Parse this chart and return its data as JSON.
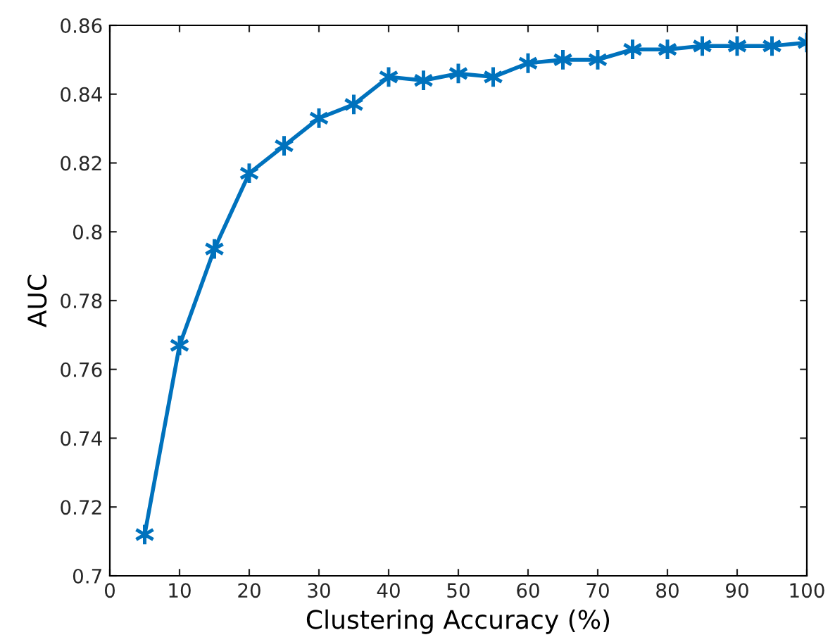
{
  "chart_data": {
    "type": "line",
    "xlabel": "Clustering Accuracy (%)",
    "ylabel": "AUC",
    "x": [
      5,
      10,
      15,
      20,
      25,
      30,
      35,
      40,
      45,
      50,
      55,
      60,
      65,
      70,
      75,
      80,
      85,
      90,
      95,
      100
    ],
    "series": [
      {
        "color": "#0072bd",
        "values": [
          0.712,
          0.767,
          0.795,
          0.817,
          0.825,
          0.833,
          0.837,
          0.845,
          0.844,
          0.846,
          0.845,
          0.849,
          0.85,
          0.85,
          0.853,
          0.853,
          0.854,
          0.854,
          0.854,
          0.855
        ]
      }
    ],
    "xlim": [
      0,
      100
    ],
    "xticks": [
      0,
      10,
      20,
      30,
      40,
      50,
      60,
      70,
      80,
      90,
      100
    ],
    "ylim": [
      0.7,
      0.86
    ],
    "yticks": [
      0.7,
      0.72,
      0.74,
      0.76,
      0.78,
      0.8,
      0.82,
      0.84,
      0.86
    ],
    "marker": "cross",
    "line_style": "solid",
    "grid": false,
    "legend": false
  }
}
